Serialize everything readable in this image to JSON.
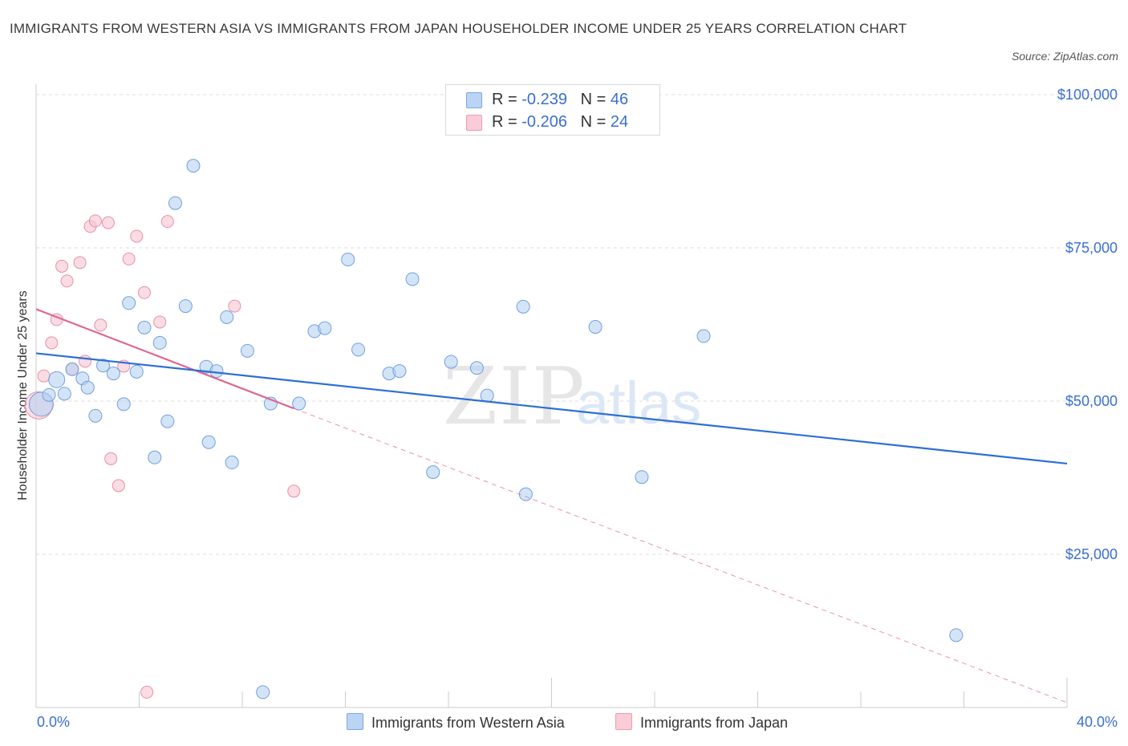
{
  "title": "IMMIGRANTS FROM WESTERN ASIA VS IMMIGRANTS FROM JAPAN HOUSEHOLDER INCOME UNDER 25 YEARS CORRELATION CHART",
  "source": "Source: ZipAtlas.com",
  "watermark": {
    "zip": "ZIP",
    "atlas": "atlas"
  },
  "legend_top": [
    {
      "r_label": "R = ",
      "r_value": "-0.239",
      "n_label": "N = ",
      "n_value": "46",
      "color": "#a8c8f0"
    },
    {
      "r_label": "R = ",
      "r_value": "-0.206",
      "n_label": "N = ",
      "n_value": "24",
      "color": "#f5b8c8"
    }
  ],
  "legend_bottom": [
    {
      "label": "Immigrants from Western Asia",
      "color": "#a8c8f0"
    },
    {
      "label": "Immigrants from Japan",
      "color": "#f5b8c8"
    }
  ],
  "colors": {
    "blue_fill": "#b8d2f2",
    "blue_stroke": "#6fa0e0",
    "blue_line": "#2c6fd4",
    "pink_fill": "#f7c4d2",
    "pink_stroke": "#ea8fa8",
    "pink_line": "#e06590",
    "tick_text": "#3a6fd0",
    "grid": "#dddddd"
  },
  "chart_data": {
    "type": "scatter",
    "title": "IMMIGRANTS FROM WESTERN ASIA VS IMMIGRANTS FROM JAPAN HOUSEHOLDER INCOME UNDER 25 YEARS CORRELATION CHART",
    "xlabel": "",
    "ylabel": "Householder Income Under 25 years",
    "xlim": [
      0,
      40
    ],
    "ylim": [
      0,
      100000
    ],
    "x_tick_labels": [
      "0.0%",
      "40.0%"
    ],
    "y_ticks": [
      25000,
      50000,
      75000,
      100000
    ],
    "y_tick_labels": [
      "$25,000",
      "$50,000",
      "$75,000",
      "$100,000"
    ],
    "grid": true,
    "legend_position": "top-center",
    "series": [
      {
        "name": "Immigrants from Western Asia",
        "r": -0.239,
        "n": 46,
        "trend": {
          "x": [
            0,
            40
          ],
          "y": [
            57800,
            39800
          ]
        },
        "points": [
          [
            0.2,
            49500
          ],
          [
            0.5,
            51000
          ],
          [
            0.8,
            53500
          ],
          [
            1.1,
            51200
          ],
          [
            1.4,
            55200
          ],
          [
            1.8,
            53700
          ],
          [
            2.0,
            52200
          ],
          [
            2.3,
            47600
          ],
          [
            2.6,
            55800
          ],
          [
            3.0,
            54500
          ],
          [
            3.4,
            49500
          ],
          [
            3.6,
            66000
          ],
          [
            3.9,
            54800
          ],
          [
            4.2,
            62000
          ],
          [
            4.6,
            40800
          ],
          [
            4.8,
            59500
          ],
          [
            5.1,
            46700
          ],
          [
            5.4,
            82300
          ],
          [
            5.8,
            65500
          ],
          [
            6.1,
            88400
          ],
          [
            6.6,
            55600
          ],
          [
            6.7,
            43300
          ],
          [
            7.0,
            54900
          ],
          [
            7.4,
            63700
          ],
          [
            7.6,
            40000
          ],
          [
            8.2,
            58200
          ],
          [
            8.8,
            2500
          ],
          [
            9.1,
            49600
          ],
          [
            10.2,
            49600
          ],
          [
            10.8,
            61400
          ],
          [
            11.2,
            61900
          ],
          [
            12.1,
            73100
          ],
          [
            12.5,
            58400
          ],
          [
            13.7,
            54500
          ],
          [
            14.1,
            54900
          ],
          [
            14.6,
            69900
          ],
          [
            15.4,
            38400
          ],
          [
            16.1,
            56400
          ],
          [
            17.1,
            55400
          ],
          [
            17.5,
            50900
          ],
          [
            18.9,
            65400
          ],
          [
            19.0,
            34800
          ],
          [
            21.7,
            62100
          ],
          [
            23.5,
            37600
          ],
          [
            25.9,
            60600
          ],
          [
            35.7,
            11800
          ]
        ]
      },
      {
        "name": "Immigrants from Japan",
        "r": -0.206,
        "n": 24,
        "trend": {
          "x": [
            0,
            10.0
          ],
          "y": [
            65000,
            48800
          ]
        },
        "trend_extension": {
          "x": [
            10.0,
            40
          ],
          "y": [
            48800,
            800
          ]
        },
        "points": [
          [
            0.1,
            49300
          ],
          [
            0.3,
            54100
          ],
          [
            0.6,
            59500
          ],
          [
            0.8,
            63300
          ],
          [
            1.0,
            72000
          ],
          [
            1.2,
            69600
          ],
          [
            1.4,
            55200
          ],
          [
            1.7,
            72600
          ],
          [
            1.9,
            56500
          ],
          [
            2.1,
            78500
          ],
          [
            2.3,
            79400
          ],
          [
            2.5,
            62400
          ],
          [
            2.8,
            79100
          ],
          [
            2.9,
            40600
          ],
          [
            3.2,
            36200
          ],
          [
            3.4,
            55700
          ],
          [
            3.6,
            73200
          ],
          [
            3.9,
            76900
          ],
          [
            4.2,
            67700
          ],
          [
            4.3,
            2500
          ],
          [
            4.8,
            62900
          ],
          [
            5.1,
            79300
          ],
          [
            7.7,
            65500
          ],
          [
            10.0,
            35300
          ]
        ]
      }
    ]
  }
}
